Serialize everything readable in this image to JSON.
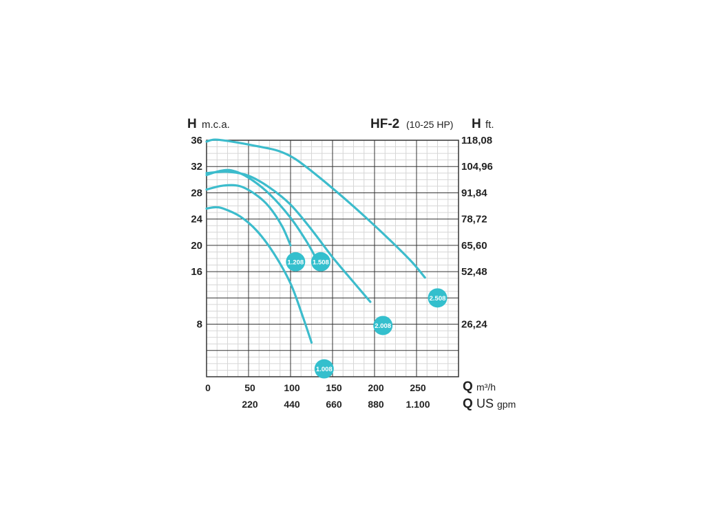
{
  "chart_data": {
    "type": "line",
    "title": "HF-2",
    "subtitle": "(10-25 HP)",
    "left_axis": {
      "symbol": "H",
      "unit": "m.c.a."
    },
    "right_axis": {
      "symbol": "H",
      "unit": "ft."
    },
    "x_axis": {
      "symbol": "Q",
      "unit": "m³/h"
    },
    "x2_axis": {
      "symbol": "Q",
      "unit_upper": "US",
      "unit_lower": "gpm"
    },
    "xlim": [
      0,
      300
    ],
    "ylim": [
      0,
      36
    ],
    "grid": true,
    "x_ticks": [
      {
        "value": 0,
        "label": "0"
      },
      {
        "value": 50,
        "label": "50"
      },
      {
        "value": 100,
        "label": "100"
      },
      {
        "value": 150,
        "label": "150"
      },
      {
        "value": 200,
        "label": "200"
      },
      {
        "value": 250,
        "label": "250"
      }
    ],
    "x2_ticks": [
      {
        "value": 50,
        "label": "220"
      },
      {
        "value": 100,
        "label": "440"
      },
      {
        "value": 150,
        "label": "660"
      },
      {
        "value": 200,
        "label": "880"
      },
      {
        "value": 250,
        "label": "1.100"
      }
    ],
    "y_ticks": [
      {
        "value": 36,
        "label": "36"
      },
      {
        "value": 32,
        "label": "32"
      },
      {
        "value": 28,
        "label": "28"
      },
      {
        "value": 24,
        "label": "24"
      },
      {
        "value": 20,
        "label": "20"
      },
      {
        "value": 16,
        "label": "16"
      },
      {
        "value": 8,
        "label": "8"
      }
    ],
    "y2_ticks": [
      {
        "value": 36,
        "label": "118,08"
      },
      {
        "value": 32,
        "label": "104,96"
      },
      {
        "value": 28,
        "label": "91,84"
      },
      {
        "value": 24,
        "label": "78,72"
      },
      {
        "value": 20,
        "label": "65,60"
      },
      {
        "value": 16,
        "label": "52,48"
      },
      {
        "value": 8,
        "label": "26,24"
      }
    ],
    "series": [
      {
        "name": "1.008",
        "label_at": [
          140,
          1.2
        ],
        "x": [
          0,
          10,
          20,
          40,
          60,
          80,
          100,
          115,
          125
        ],
        "y": [
          25.6,
          25.8,
          25.6,
          24.4,
          22.2,
          18.8,
          14.2,
          9.0,
          5.2
        ]
      },
      {
        "name": "1.208",
        "label_at": [
          106,
          17.5
        ],
        "x": [
          0,
          20,
          40,
          60,
          75,
          90,
          100
        ],
        "y": [
          28.5,
          29.1,
          29.0,
          27.6,
          25.8,
          22.9,
          20.0
        ]
      },
      {
        "name": "1.508",
        "label_at": [
          136,
          17.5
        ],
        "x": [
          0,
          15,
          30,
          50,
          75,
          100,
          120,
          132
        ],
        "y": [
          30.7,
          31.3,
          31.4,
          30.3,
          27.8,
          24.2,
          20.4,
          17.6
        ]
      },
      {
        "name": "2.008",
        "label_at": [
          210,
          7.8
        ],
        "x": [
          0,
          25,
          50,
          75,
          100,
          125,
          150,
          175,
          195
        ],
        "y": [
          31.0,
          31.2,
          30.6,
          28.8,
          26.2,
          22.4,
          18.2,
          14.4,
          11.4
        ]
      },
      {
        "name": "2.508",
        "label_at": [
          275,
          12.0
        ],
        "x": [
          0,
          10,
          30,
          60,
          85,
          105,
          130,
          160,
          190,
          220,
          245,
          260
        ],
        "y": [
          35.8,
          36.1,
          35.8,
          35.1,
          34.4,
          33.2,
          30.8,
          27.6,
          24.2,
          20.6,
          17.4,
          15.1
        ]
      }
    ]
  },
  "style": {
    "curve_color": "#3cbccc",
    "badge_color": "#34bfcd",
    "major_grid_color": "#333333",
    "minor_grid_color": "#d6d6d6",
    "text_color": "#222222"
  }
}
